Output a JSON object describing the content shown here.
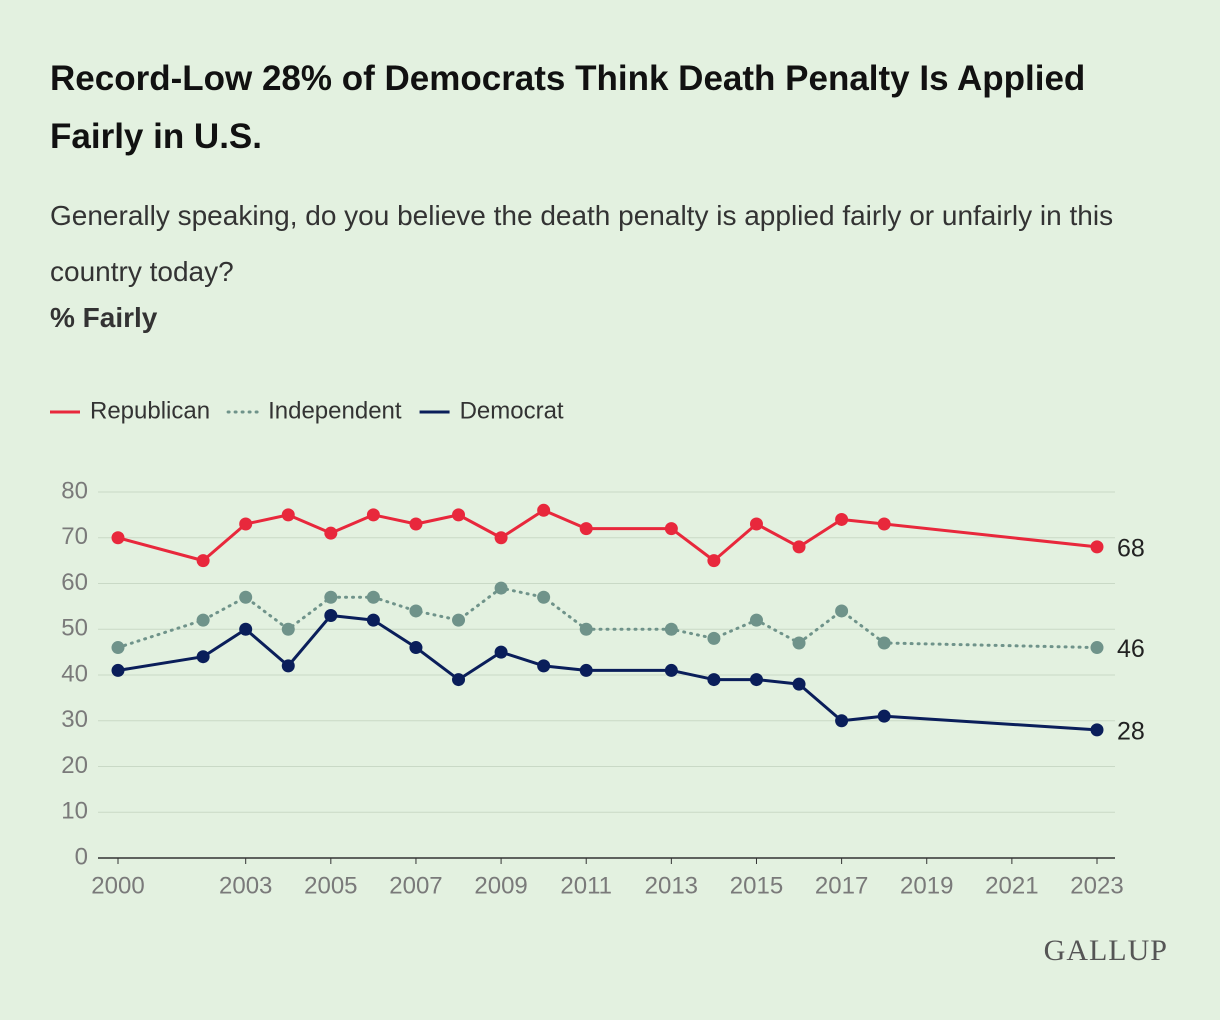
{
  "chart_data": {
    "type": "line",
    "title": "Record-Low 28% of Democrats Think Death Penalty Is Applied Fairly in U.S.",
    "subtitle": "Generally speaking, do you believe the death penalty is applied fairly or unfairly in this country today?",
    "y_label": "% Fairly",
    "source": "GALLUP",
    "x": [
      2000,
      2002,
      2003,
      2004,
      2005,
      2006,
      2007,
      2008,
      2009,
      2010,
      2011,
      2013,
      2014,
      2015,
      2016,
      2017,
      2018,
      2023
    ],
    "series": [
      {
        "name": "Republican",
        "color": "#e8283c",
        "style": "solid",
        "values": [
          70,
          65,
          73,
          75,
          71,
          75,
          73,
          75,
          70,
          76,
          72,
          72,
          65,
          73,
          68,
          74,
          73,
          68
        ]
      },
      {
        "name": "Independent",
        "color": "#6f938a",
        "style": "dotted",
        "values": [
          46,
          52,
          57,
          50,
          57,
          57,
          54,
          52,
          59,
          57,
          50,
          50,
          48,
          52,
          47,
          54,
          47,
          46
        ]
      },
      {
        "name": "Democrat",
        "color": "#0a1e5a",
        "style": "solid",
        "values": [
          41,
          44,
          50,
          42,
          53,
          52,
          46,
          39,
          45,
          42,
          41,
          41,
          39,
          39,
          38,
          30,
          31,
          28
        ]
      }
    ],
    "xlim": [
      2000,
      2023
    ],
    "xticks": [
      2000,
      2003,
      2005,
      2007,
      2009,
      2011,
      2013,
      2015,
      2017,
      2019,
      2021,
      2023
    ],
    "ylim": [
      0,
      80
    ],
    "yticks": [
      0,
      10,
      20,
      30,
      40,
      50,
      60,
      70,
      80
    ],
    "grid": true
  }
}
